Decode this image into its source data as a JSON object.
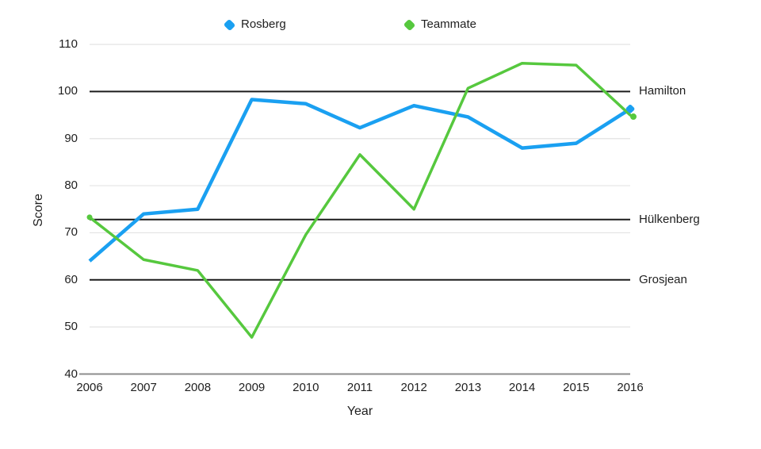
{
  "legend": {
    "items": [
      {
        "label": "Rosberg",
        "color": "#1AA0F1"
      },
      {
        "label": "Teammate",
        "color": "#56C83E"
      }
    ]
  },
  "axes": {
    "y_title": "Score",
    "x_title": "Year"
  },
  "colors": {
    "grid": "#e3e3e3",
    "baseline": "#8c8c8c",
    "reference": "#1c1c1c",
    "text": "#1f1f1f",
    "rosberg_blue": "#1AA0F1",
    "teammate_green": "#56C83E"
  },
  "chart_data": {
    "type": "line",
    "title": "",
    "xlabel": "Year",
    "ylabel": "Score",
    "x": [
      "2006",
      "2007",
      "2008",
      "2009",
      "2010",
      "2011",
      "2012",
      "2013",
      "2014",
      "2015",
      "2016"
    ],
    "series": [
      {
        "name": "Rosberg",
        "color": "#1AA0F1",
        "values": [
          64,
          74,
          75,
          98.3,
          97.4,
          92.3,
          97,
          94.6,
          88,
          89,
          96.3
        ]
      },
      {
        "name": "Teammate",
        "color": "#56C83E",
        "values": [
          73.3,
          64.3,
          62,
          47.8,
          69.6,
          86.6,
          75,
          100.7,
          106,
          105.6,
          95
        ]
      }
    ],
    "ylim": [
      40,
      110
    ],
    "yticks": [
      40,
      50,
      60,
      70,
      80,
      90,
      100,
      110
    ],
    "gridline_values": [
      110,
      90,
      80,
      70,
      50
    ],
    "baseline_value": 40,
    "reference_lines": [
      {
        "label": "Hamilton",
        "value": 100
      },
      {
        "label": "Hülkenberg",
        "value": 72.8
      },
      {
        "label": "Grosjean",
        "value": 60
      }
    ],
    "grid": true,
    "legend_position": "top"
  }
}
